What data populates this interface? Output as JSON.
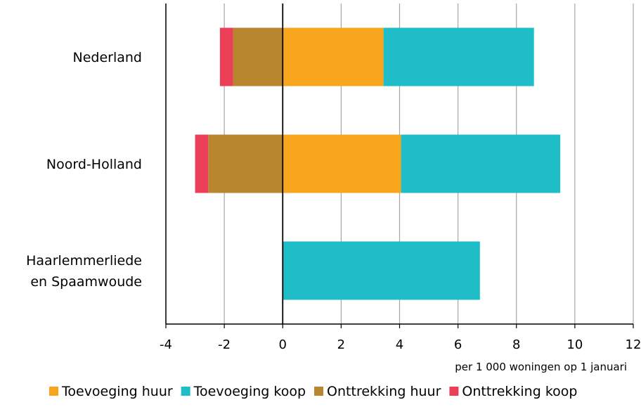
{
  "chart_data": {
    "type": "bar",
    "orientation": "horizontal",
    "stacked": true,
    "categories": [
      "Nederland",
      "Noord-Holland",
      "Haarlemmerliede en Spaamwoude"
    ],
    "series": [
      {
        "name": "Toevoeging huur",
        "color": "#f7a51c",
        "values": [
          3.45,
          4.05,
          0
        ]
      },
      {
        "name": "Toevoeging koop",
        "color": "#1ebdc8",
        "values": [
          5.15,
          5.45,
          6.75
        ]
      },
      {
        "name": "Onttrekking huur",
        "color": "#b8862e",
        "values": [
          -1.7,
          -2.55,
          0
        ]
      },
      {
        "name": "Onttrekking koop",
        "color": "#ea3f57",
        "values": [
          -0.45,
          -0.45,
          0
        ]
      }
    ],
    "xlim": [
      -4,
      12
    ],
    "xticks": [
      -4,
      -2,
      0,
      2,
      4,
      6,
      8,
      10,
      12
    ],
    "xlabel": "per 1 000 woningen op 1 januari",
    "grid": "vertical",
    "legend_position": "bottom"
  }
}
